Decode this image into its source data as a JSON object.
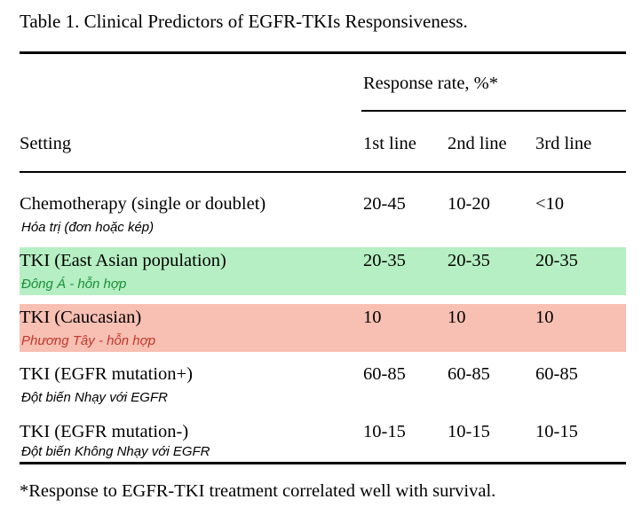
{
  "caption": "Table 1. Clinical Predictors of EGFR-TKIs Responsiveness.",
  "header": {
    "group_label": "Response rate, %*",
    "setting_label": "Setting",
    "columns": [
      "1st line",
      "2nd line",
      "3rd line"
    ]
  },
  "rows": [
    {
      "setting": "Chemotherapy (single or doublet)",
      "note": "Hóa trị (đơn hoặc kép)",
      "values": [
        "20-45",
        "10-20",
        "<10"
      ],
      "highlight": ""
    },
    {
      "setting": "TKI (East Asian population)",
      "note": "Đông Á - hỗn hợp",
      "values": [
        "20-35",
        "20-35",
        "20-35"
      ],
      "highlight": "#b6efc3"
    },
    {
      "setting": "TKI (Caucasian)",
      "note": "Phương Tây - hỗn hợp",
      "values": [
        "10",
        "10",
        "10"
      ],
      "highlight": "#f8bfb3"
    },
    {
      "setting": "TKI (EGFR mutation+)",
      "note": "Đột biến Nhạy với EGFR",
      "values": [
        "60-85",
        "60-85",
        "60-85"
      ],
      "highlight": ""
    },
    {
      "setting": "TKI (EGFR mutation-)",
      "note": "Đột biến Không Nhạy với EGFR",
      "values": [
        "10-15",
        "10-15",
        "10-15"
      ],
      "highlight": ""
    }
  ],
  "footnote": "*Response to EGFR-TKI treatment correlated well with survival."
}
